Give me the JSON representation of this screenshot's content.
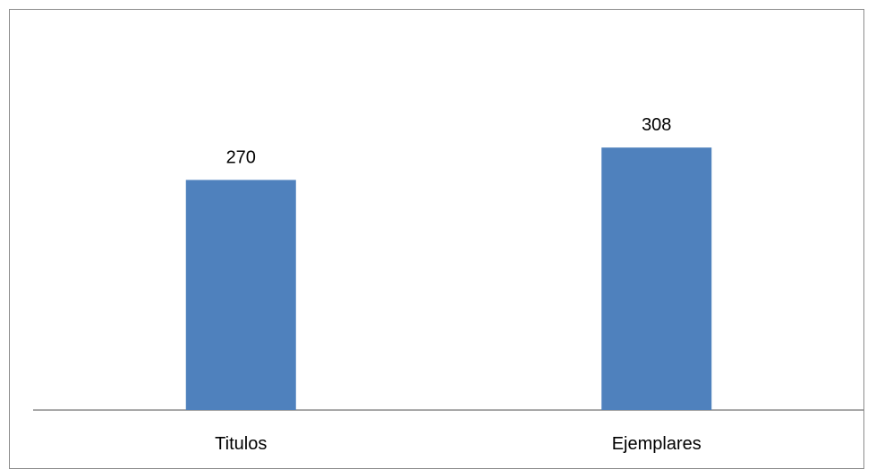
{
  "chart_data": {
    "type": "bar",
    "categories": [
      "Titulos",
      "Ejemplares"
    ],
    "values": [
      270,
      308
    ],
    "data_labels": [
      "270",
      "308"
    ],
    "title": "",
    "xlabel": "",
    "ylabel": "",
    "ylim": [
      0,
      400
    ],
    "grid": false,
    "legend": "none",
    "bar_color": "#4F81BD",
    "axis_color": "#8C8C8C"
  }
}
